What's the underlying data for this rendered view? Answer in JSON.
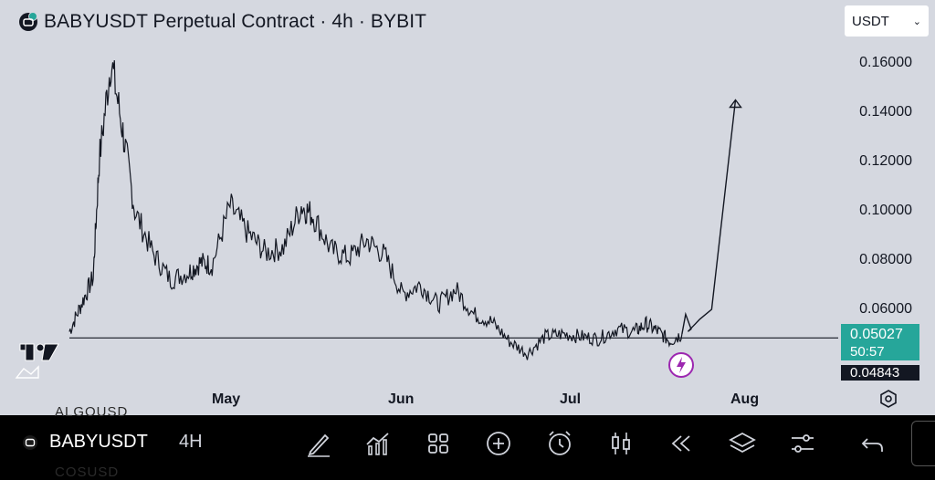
{
  "header": {
    "title": "BABYUSDT Perpetual Contract · 4h · BYBIT",
    "logo_icon": "bybit-logo-icon"
  },
  "currency_selector": {
    "value": "USDT"
  },
  "y_axis": {
    "ticks": [
      "0.16000",
      "0.14000",
      "0.12000",
      "0.10000",
      "0.08000",
      "0.06000"
    ]
  },
  "x_axis": {
    "ticks": [
      "May",
      "Jun",
      "Jul",
      "Aug"
    ]
  },
  "price_tag": {
    "price": "0.05027",
    "countdown": "50:57",
    "color": "#26a69a"
  },
  "line_tag": {
    "price": "0.04843"
  },
  "toolbar": {
    "symbol": "BABYUSDT",
    "interval": "4H",
    "buttons": [
      "draw-icon",
      "indicators-icon",
      "layouts-icon",
      "add-icon",
      "alert-icon",
      "chart-type-icon",
      "replay-icon",
      "layers-icon",
      "settings-sliders-icon",
      "undo-icon"
    ]
  },
  "chart_data": {
    "type": "line",
    "title": "BABYUSDT Perpetual Contract · 4h · BYBIT",
    "x": [
      "2025-04-10",
      "2025-04-12",
      "2025-04-14",
      "2025-04-15",
      "2025-04-17",
      "2025-04-19",
      "2025-04-21",
      "2025-04-24",
      "2025-04-27",
      "2025-04-30",
      "2025-05-02",
      "2025-05-04",
      "2025-05-07",
      "2025-05-10",
      "2025-05-13",
      "2025-05-16",
      "2025-05-19",
      "2025-05-21",
      "2025-05-24",
      "2025-05-27",
      "2025-05-30",
      "2025-06-02",
      "2025-06-05",
      "2025-06-08",
      "2025-06-11",
      "2025-06-14",
      "2025-06-17",
      "2025-06-20",
      "2025-06-23",
      "2025-06-26",
      "2025-06-29",
      "2025-07-02",
      "2025-07-05",
      "2025-07-08",
      "2025-07-11",
      "2025-07-14",
      "2025-07-16",
      "2025-07-18",
      "2025-07-20",
      "2025-07-22"
    ],
    "series": [
      {
        "values": [
          0.051,
          0.062,
          0.073,
          0.12,
          0.161,
          0.132,
          0.1,
          0.083,
          0.072,
          0.075,
          0.079,
          0.078,
          0.102,
          0.091,
          0.083,
          0.085,
          0.102,
          0.098,
          0.084,
          0.081,
          0.088,
          0.082,
          0.066,
          0.07,
          0.062,
          0.068,
          0.058,
          0.055,
          0.047,
          0.042,
          0.049,
          0.05,
          0.049,
          0.048,
          0.052,
          0.051,
          0.054,
          0.051,
          0.047,
          0.05
        ]
      }
    ],
    "ylim": [
      0.035,
      0.18
    ],
    "horizontal_line": 0.0484,
    "projection": [
      [
        0.051,
        "2025-07-23"
      ],
      [
        0.056,
        "2025-07-25"
      ],
      [
        0.06,
        "2025-07-27"
      ],
      [
        0.145,
        "2025-07-31"
      ]
    ],
    "grid": false
  }
}
